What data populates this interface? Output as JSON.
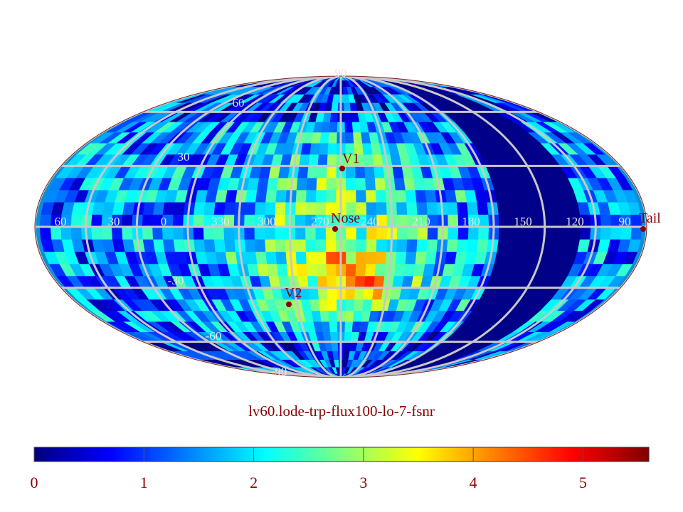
{
  "title": "lv60.lode-trp-flux100-lo-7-fsnr",
  "projection": "Mollweide (ecliptic coordinates, longitude increasing to the left from center)",
  "grid": {
    "latitudes": [
      90,
      60,
      30,
      0,
      -30,
      -60,
      -90
    ],
    "latitude_labels": [
      "90",
      "60",
      "30",
      "-30",
      "-60",
      "-90"
    ],
    "longitude_labels_equator": [
      "60",
      "30",
      "0",
      "330",
      "300",
      "270",
      "240",
      "210",
      "180",
      "150",
      "120",
      "90"
    ],
    "grid_color": "#c8c8c8"
  },
  "markers": [
    {
      "name": "V1",
      "lon": 255,
      "lat": 34
    },
    {
      "name": "Nose",
      "lon": 255,
      "lat": 5
    },
    {
      "name": "V2",
      "lon": 290,
      "lat": -32
    },
    {
      "name": "Tail",
      "lon": 75,
      "lat": -5
    }
  ],
  "marker_color": "#8b0000",
  "colorbar": {
    "min": 0,
    "max": 5.6,
    "ticks": [
      "0",
      "1",
      "2",
      "3",
      "4",
      "5"
    ],
    "colormap": [
      "#00007f",
      "#0000ff",
      "#007fff",
      "#00ffff",
      "#7fff7f",
      "#ffff00",
      "#ff7f00",
      "#ff0000",
      "#7f0000"
    ],
    "label_color": "#8b0000"
  }
}
